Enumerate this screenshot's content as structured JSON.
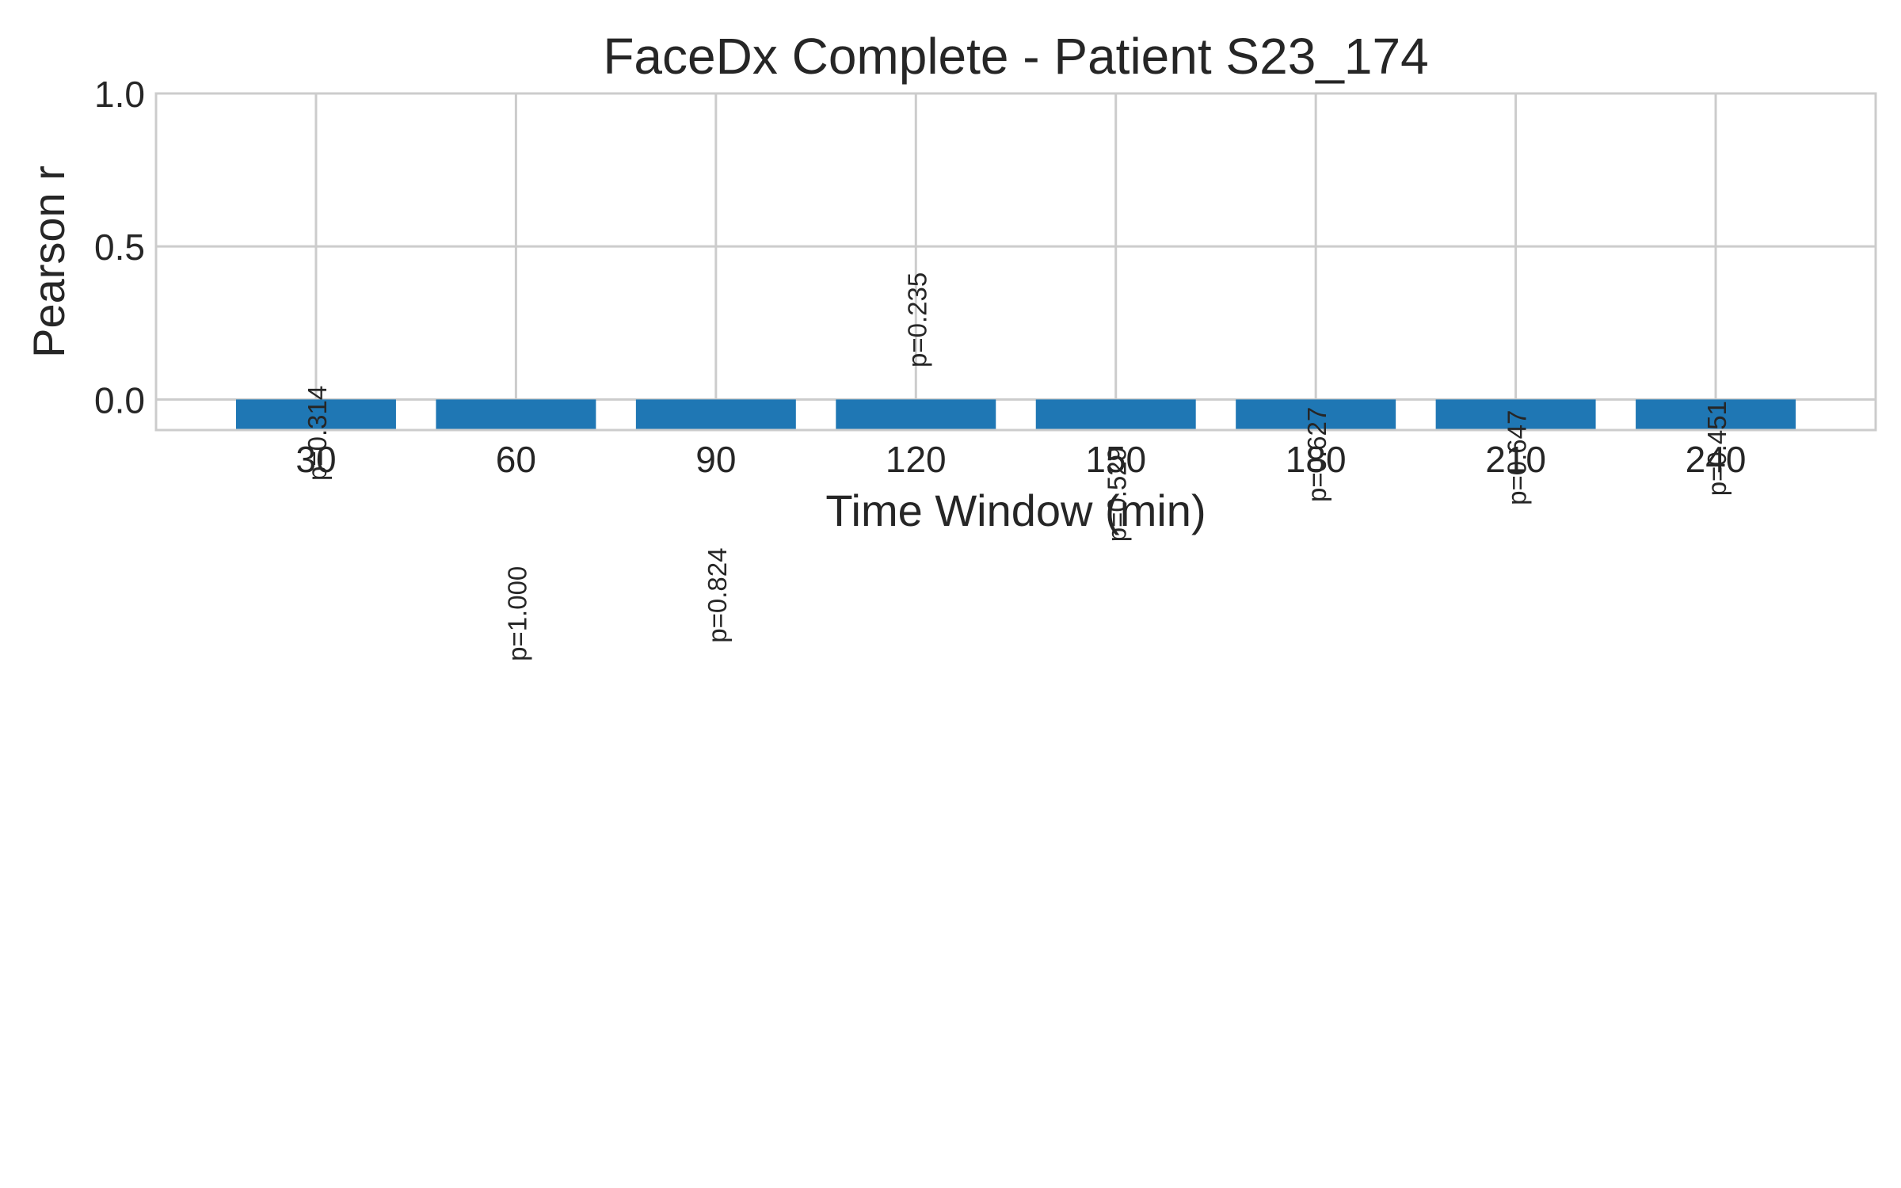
{
  "chart_data": {
    "type": "bar",
    "title": "FaceDx Complete - Patient S23_174",
    "xlabel": "Time Window (min)",
    "ylabel": "Pearson r",
    "categories": [
      "30",
      "60",
      "90",
      "120",
      "150",
      "180",
      "210",
      "240"
    ],
    "series": [
      {
        "values": [
          -0.1,
          -0.1,
          -0.1,
          -0.1,
          -0.1,
          -0.1,
          -0.1,
          -0.1
        ],
        "annotations": [
          "p=0.314",
          "p=1.000",
          "p=0.824",
          "p=0.235",
          "p=0.529",
          "p=0.627",
          "p=0.647",
          "p=0.451"
        ]
      }
    ],
    "annotation_y": [
      -0.11,
      -0.7,
      -0.64,
      0.26,
      -0.31,
      -0.18,
      -0.19,
      -0.16
    ],
    "ylim": [
      -0.1,
      1.0
    ],
    "yticks": [
      0.0,
      0.5,
      1.0
    ],
    "ytick_labels": [
      "0.0",
      "0.5",
      "1.0"
    ],
    "grid": true,
    "bar_color": "#1f77b4",
    "grid_color": "#cccccc",
    "text_color": "#262626"
  }
}
